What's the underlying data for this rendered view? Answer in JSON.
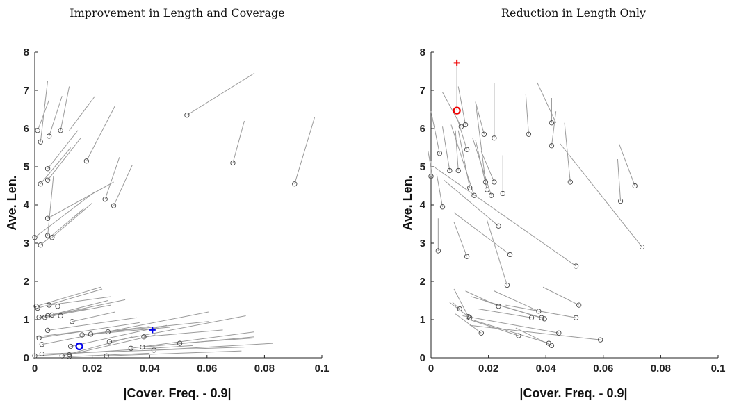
{
  "chart_data": [
    {
      "type": "scatter",
      "title": "Improvement in Length and Coverage",
      "xlabel": "|Cover. Freq. - 0.9|",
      "ylabel": "Ave. Len.",
      "xlim": [
        0,
        0.1
      ],
      "ylim": [
        0,
        8
      ],
      "xticks": [
        "0",
        "0.02",
        "0.04",
        "0.06",
        "0.08",
        "0.1"
      ],
      "yticks": [
        "0",
        "1",
        "2",
        "3",
        "4",
        "5",
        "6",
        "7",
        "8"
      ],
      "grid": false,
      "segments": [
        [
          0.001,
          5.95,
          0.005,
          6.75
        ],
        [
          0.002,
          5.65,
          0.0045,
          7.25
        ],
        [
          0.005,
          5.8,
          0.0095,
          6.85
        ],
        [
          0.009,
          5.95,
          0.012,
          7.1
        ],
        [
          0.012,
          5.95,
          0.021,
          6.85
        ],
        [
          0.0045,
          4.95,
          0.015,
          5.95
        ],
        [
          0.0045,
          4.65,
          0.016,
          5.75
        ],
        [
          0.018,
          5.15,
          0.028,
          6.6
        ],
        [
          0.002,
          4.55,
          0.0125,
          5.5
        ],
        [
          0.053,
          6.35,
          0.0765,
          7.45
        ],
        [
          0.069,
          5.1,
          0.073,
          6.2
        ],
        [
          0.0905,
          4.55,
          0.0975,
          6.3
        ],
        [
          0.0045,
          3.65,
          0.0275,
          4.6
        ],
        [
          0.0,
          3.15,
          0.021,
          4.35
        ],
        [
          0.002,
          2.95,
          0.017,
          3.9
        ],
        [
          0.0045,
          3.2,
          0.0065,
          4.75
        ],
        [
          0.006,
          3.15,
          0.02,
          4.05
        ],
        [
          0.0245,
          4.15,
          0.0295,
          5.25
        ],
        [
          0.0275,
          3.98,
          0.034,
          5.05
        ],
        [
          0.0005,
          1.35,
          0.023,
          1.85
        ],
        [
          0.001,
          1.3,
          0.0235,
          1.8
        ],
        [
          0.005,
          1.38,
          0.0265,
          1.6
        ],
        [
          0.0045,
          1.1,
          0.0255,
          1.5
        ],
        [
          0.0035,
          1.06,
          0.0265,
          1.38
        ],
        [
          0.006,
          1.12,
          0.0315,
          1.52
        ],
        [
          0.0015,
          1.06,
          0.018,
          1.28
        ],
        [
          0.013,
          0.95,
          0.028,
          1.2
        ],
        [
          0.0045,
          0.72,
          0.0355,
          1.05
        ],
        [
          0.0015,
          0.52,
          0.0365,
          0.92
        ],
        [
          0.0005,
          0.55,
          0.017,
          0.7
        ],
        [
          0.0025,
          0.35,
          0.0605,
          1.2
        ],
        [
          0.0095,
          0.05,
          0.034,
          0.55
        ],
        [
          0.012,
          0.08,
          0.042,
          0.6
        ],
        [
          0.0125,
          0.3,
          0.046,
          0.85
        ],
        [
          0.0165,
          0.6,
          0.04,
          0.82
        ],
        [
          0.0195,
          0.62,
          0.047,
          0.8
        ],
        [
          0.0255,
          0.68,
          0.0605,
          0.95
        ],
        [
          0.026,
          0.42,
          0.0735,
          1.1
        ],
        [
          0.0335,
          0.25,
          0.0765,
          0.68
        ],
        [
          0.0375,
          0.28,
          0.0765,
          0.55
        ],
        [
          0.038,
          0.55,
          0.0655,
          0.73
        ],
        [
          0.0505,
          0.38,
          0.0765,
          0.52
        ],
        [
          0.0415,
          0.2,
          0.083,
          0.38
        ],
        [
          0.0,
          0.05,
          0.055,
          0.32
        ],
        [
          0.0025,
          0.1,
          0.073,
          0.28
        ],
        [
          0.025,
          0.05,
          0.072,
          0.18
        ],
        [
          0.012,
          0.03,
          0.04,
          0.12
        ]
      ],
      "points": [
        [
          0.001,
          5.95
        ],
        [
          0.002,
          5.65
        ],
        [
          0.005,
          5.8
        ],
        [
          0.009,
          5.95
        ],
        [
          0.0045,
          4.95
        ],
        [
          0.0045,
          4.65
        ],
        [
          0.018,
          5.15
        ],
        [
          0.002,
          4.55
        ],
        [
          0.053,
          6.35
        ],
        [
          0.069,
          5.1
        ],
        [
          0.0905,
          4.55
        ],
        [
          0.0045,
          3.65
        ],
        [
          0.0,
          3.15
        ],
        [
          0.002,
          2.95
        ],
        [
          0.0045,
          3.2
        ],
        [
          0.006,
          3.15
        ],
        [
          0.0245,
          4.15
        ],
        [
          0.0275,
          3.98
        ],
        [
          0.0005,
          1.35
        ],
        [
          0.001,
          1.3
        ],
        [
          0.005,
          1.38
        ],
        [
          0.0045,
          1.1
        ],
        [
          0.0035,
          1.06
        ],
        [
          0.006,
          1.12
        ],
        [
          0.0015,
          1.06
        ],
        [
          0.008,
          1.35
        ],
        [
          0.009,
          1.1
        ],
        [
          0.013,
          0.95
        ],
        [
          0.0045,
          0.72
        ],
        [
          0.0015,
          0.52
        ],
        [
          0.0025,
          0.35
        ],
        [
          0.0095,
          0.05
        ],
        [
          0.012,
          0.08
        ],
        [
          0.0125,
          0.3
        ],
        [
          0.0165,
          0.6
        ],
        [
          0.0195,
          0.62
        ],
        [
          0.0255,
          0.68
        ],
        [
          0.026,
          0.42
        ],
        [
          0.0335,
          0.25
        ],
        [
          0.0375,
          0.28
        ],
        [
          0.038,
          0.55
        ],
        [
          0.0505,
          0.38
        ],
        [
          0.0415,
          0.2
        ],
        [
          0.0,
          0.05
        ],
        [
          0.0025,
          0.1
        ],
        [
          0.025,
          0.05
        ],
        [
          0.012,
          0.03
        ]
      ],
      "highlight_circle": [
        0.0155,
        0.3
      ],
      "highlight_plus": [
        0.041,
        0.73
      ],
      "highlight_color": "#0000ee"
    },
    {
      "type": "scatter",
      "title": "Reduction in Length Only",
      "xlabel": "|Cover. Freq. - 0.9|",
      "ylabel": "Ave. Len.",
      "xlim": [
        0,
        0.1
      ],
      "ylim": [
        0,
        8
      ],
      "xticks": [
        "0",
        "0.02",
        "0.04",
        "0.06",
        "0.08",
        "0.1"
      ],
      "yticks": [
        "0",
        "1",
        "2",
        "3",
        "4",
        "5",
        "6",
        "7",
        "8"
      ],
      "grid": false,
      "segments": [
        [
          0.0,
          4.75,
          0.0,
          5.15
        ],
        [
          0.0005,
          4.75,
          -0.001,
          5.4
        ],
        [
          0.003,
          5.35,
          0.0,
          6.45
        ],
        [
          0.0065,
          4.9,
          0.004,
          6.05
        ],
        [
          0.0095,
          4.9,
          0.0085,
          5.95
        ],
        [
          0.0105,
          6.05,
          0.004,
          6.95
        ],
        [
          0.012,
          6.1,
          0.0095,
          7.1
        ],
        [
          0.0125,
          5.45,
          0.009,
          6.3
        ],
        [
          0.0135,
          4.45,
          0.0095,
          5.95
        ],
        [
          0.015,
          4.25,
          0.007,
          6.1
        ],
        [
          0.0185,
          5.85,
          0.0155,
          6.7
        ],
        [
          0.019,
          4.6,
          0.0155,
          6.7
        ],
        [
          0.0195,
          4.4,
          0.0155,
          5.7
        ],
        [
          0.021,
          4.25,
          0.0145,
          5.75
        ],
        [
          0.022,
          5.75,
          0.022,
          7.2
        ],
        [
          0.022,
          4.6,
          0.0175,
          5.4
        ],
        [
          0.025,
          4.3,
          0.025,
          5.3
        ],
        [
          0.034,
          5.85,
          0.033,
          6.9
        ],
        [
          0.042,
          6.15,
          0.042,
          6.8
        ],
        [
          0.042,
          5.55,
          0.0435,
          6.45
        ],
        [
          0.0435,
          6.15,
          0.037,
          7.2
        ],
        [
          0.0485,
          4.6,
          0.0465,
          6.15
        ],
        [
          0.066,
          4.1,
          0.065,
          5.2
        ],
        [
          0.071,
          4.5,
          0.0655,
          5.6
        ],
        [
          0.0735,
          2.9,
          0.045,
          5.6
        ],
        [
          0.0025,
          2.8,
          0.0025,
          3.65
        ],
        [
          0.004,
          3.95,
          0.002,
          4.8
        ],
        [
          0.0125,
          2.65,
          0.008,
          3.55
        ],
        [
          0.0235,
          3.45,
          0.0045,
          4.65
        ],
        [
          0.0275,
          2.7,
          0.008,
          3.8
        ],
        [
          0.0265,
          1.9,
          0.0195,
          3.6
        ],
        [
          0.0505,
          2.4,
          0.001,
          5.0
        ],
        [
          0.0515,
          1.38,
          0.039,
          1.85
        ],
        [
          0.01,
          1.28,
          0.0075,
          1.45
        ],
        [
          0.013,
          1.08,
          0.008,
          1.8
        ],
        [
          0.0135,
          1.05,
          0.0065,
          1.45
        ],
        [
          0.0235,
          1.35,
          0.012,
          1.75
        ],
        [
          0.0375,
          1.22,
          0.022,
          1.75
        ],
        [
          0.035,
          1.05,
          0.0165,
          1.28
        ],
        [
          0.0385,
          1.05,
          0.014,
          1.6
        ],
        [
          0.0395,
          1.02,
          0.019,
          1.48
        ],
        [
          0.0505,
          1.05,
          0.026,
          1.38
        ],
        [
          0.0175,
          0.65,
          0.0085,
          1.15
        ],
        [
          0.0305,
          0.58,
          0.0125,
          1.02
        ],
        [
          0.041,
          0.38,
          0.015,
          0.98
        ],
        [
          0.042,
          0.32,
          0.0295,
          0.78
        ],
        [
          0.0445,
          0.65,
          0.011,
          1.1
        ],
        [
          0.059,
          0.47,
          0.0135,
          0.85
        ]
      ],
      "points": [
        [
          0.0,
          4.75
        ],
        [
          0.003,
          5.35
        ],
        [
          0.0065,
          4.9
        ],
        [
          0.0095,
          4.9
        ],
        [
          0.0105,
          6.05
        ],
        [
          0.012,
          6.1
        ],
        [
          0.0125,
          5.45
        ],
        [
          0.0135,
          4.45
        ],
        [
          0.015,
          4.25
        ],
        [
          0.0185,
          5.85
        ],
        [
          0.019,
          4.6
        ],
        [
          0.0195,
          4.4
        ],
        [
          0.021,
          4.25
        ],
        [
          0.022,
          5.75
        ],
        [
          0.022,
          4.6
        ],
        [
          0.025,
          4.3
        ],
        [
          0.034,
          5.85
        ],
        [
          0.042,
          6.15
        ],
        [
          0.042,
          5.55
        ],
        [
          0.0485,
          4.6
        ],
        [
          0.066,
          4.1
        ],
        [
          0.071,
          4.5
        ],
        [
          0.0735,
          2.9
        ],
        [
          0.0025,
          2.8
        ],
        [
          0.004,
          3.95
        ],
        [
          0.0125,
          2.65
        ],
        [
          0.0235,
          3.45
        ],
        [
          0.0275,
          2.7
        ],
        [
          0.0265,
          1.9
        ],
        [
          0.0505,
          2.4
        ],
        [
          0.0515,
          1.38
        ],
        [
          0.01,
          1.28
        ],
        [
          0.013,
          1.08
        ],
        [
          0.0135,
          1.05
        ],
        [
          0.0235,
          1.35
        ],
        [
          0.0375,
          1.22
        ],
        [
          0.035,
          1.05
        ],
        [
          0.0385,
          1.05
        ],
        [
          0.0395,
          1.02
        ],
        [
          0.0505,
          1.05
        ],
        [
          0.0175,
          0.65
        ],
        [
          0.0305,
          0.58
        ],
        [
          0.041,
          0.38
        ],
        [
          0.042,
          0.32
        ],
        [
          0.0445,
          0.65
        ],
        [
          0.059,
          0.47
        ]
      ],
      "highlight_segment": [
        0.009,
        6.47,
        0.009,
        7.72
      ],
      "highlight_circle": [
        0.009,
        6.47
      ],
      "highlight_plus": [
        0.009,
        7.72
      ],
      "highlight_color": "#ee0000"
    }
  ]
}
